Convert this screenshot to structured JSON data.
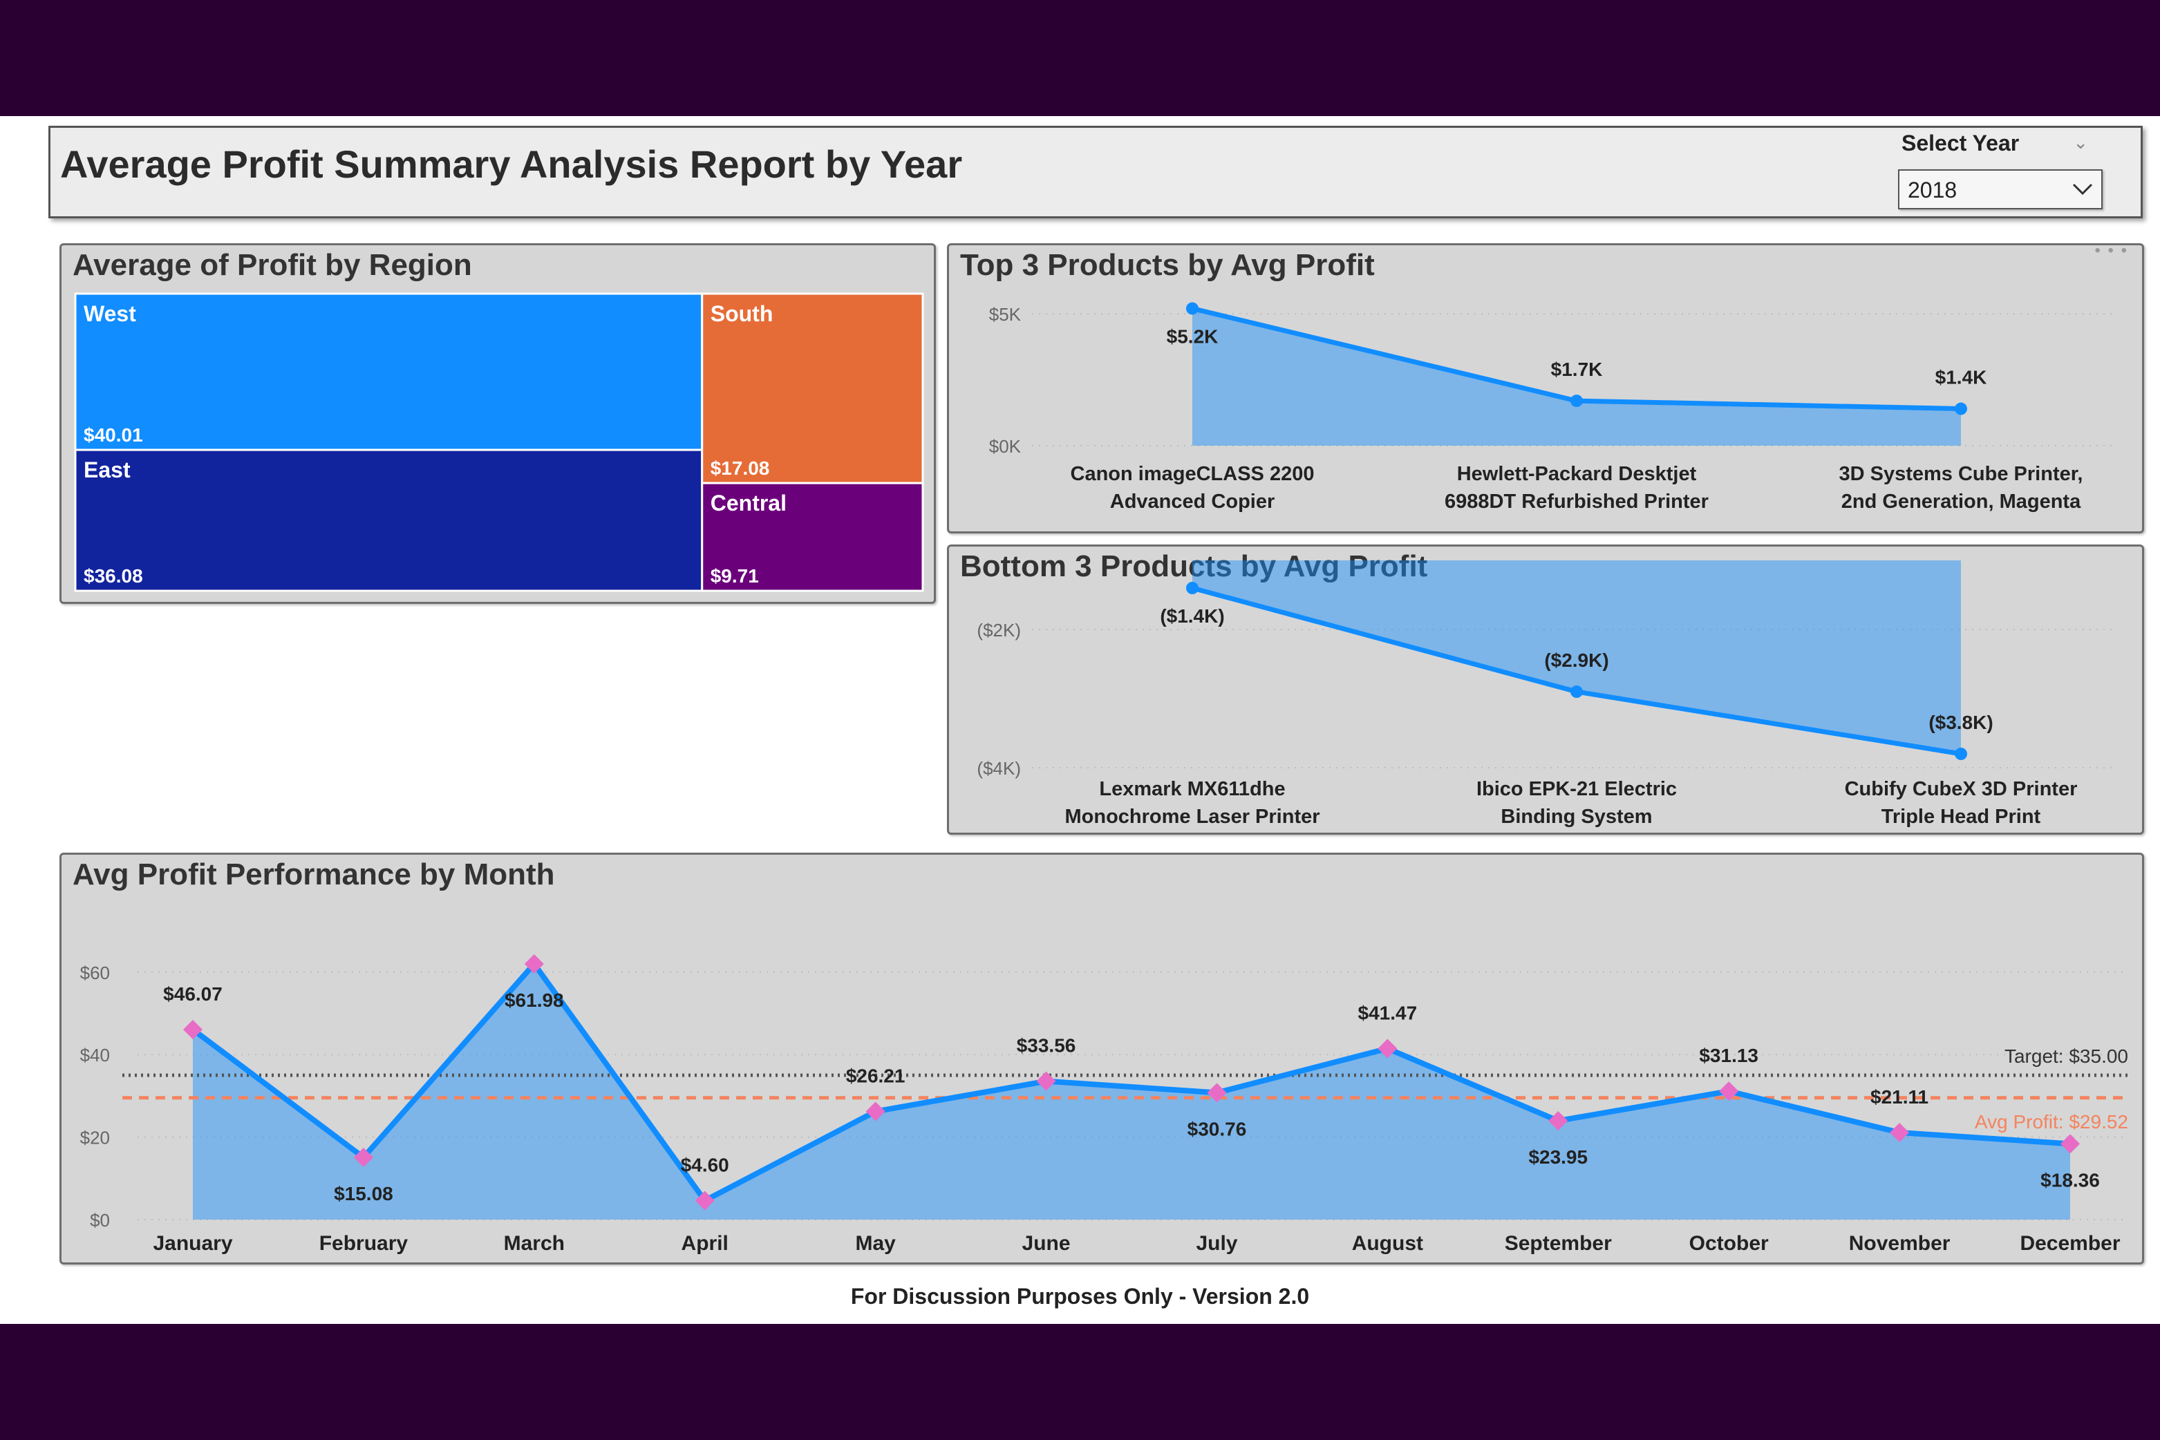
{
  "header": {
    "title": "Average Profit Summary Analysis Report by Year",
    "slicer_label": "Select Year",
    "slicer_value": "2018"
  },
  "treemap": {
    "title": "Average of Profit by Region",
    "regions": [
      {
        "name": "West",
        "value_label": "$40.01",
        "value": 40.01,
        "color": "#118dff"
      },
      {
        "name": "East",
        "value_label": "$36.08",
        "value": 36.08,
        "color": "#12239e"
      },
      {
        "name": "South",
        "value_label": "$17.08",
        "value": 17.08,
        "color": "#e66c37"
      },
      {
        "name": "Central",
        "value_label": "$9.71",
        "value": 9.71,
        "color": "#6b007b"
      }
    ]
  },
  "top3": {
    "title": "Top 3 Products by Avg Profit"
  },
  "bottom3": {
    "title": "Bottom 3 Products by Avg Profit"
  },
  "monthly": {
    "title": "Avg Profit Performance by Month"
  },
  "footer": {
    "text": "For Discussion Purposes Only - Version 2.0"
  },
  "chart_data": [
    {
      "type": "area",
      "title": "Top 3 Products by Avg Profit",
      "categories": [
        "Canon imageCLASS 2200 Advanced Copier",
        "Hewlett-Packard Desktjet 6988DT Refurbished Printer",
        "3D Systems Cube Printer, 2nd Generation, Magenta"
      ],
      "category_lines": [
        [
          "Canon imageCLASS 2200",
          "Advanced Copier"
        ],
        [
          "Hewlett-Packard Desktjet",
          "6988DT Refurbished Printer"
        ],
        [
          "3D Systems Cube Printer,",
          "2nd Generation, Magenta"
        ]
      ],
      "values": [
        5200,
        1700,
        1400
      ],
      "data_labels": [
        "$5.2K",
        "$1.7K",
        "$1.4K"
      ],
      "y_ticks": [
        {
          "value": 0,
          "label": "$0K"
        },
        {
          "value": 5000,
          "label": "$5K"
        }
      ],
      "ylim": [
        0,
        5500
      ],
      "grid": true,
      "color": "#118dff"
    },
    {
      "type": "area",
      "title": "Bottom 3 Products by Avg Profit",
      "categories": [
        "Lexmark MX611dhe Monochrome Laser Printer",
        "Ibico EPK-21 Electric Binding System",
        "Cubify CubeX 3D Printer Triple Head Print"
      ],
      "category_lines": [
        [
          "Lexmark MX611dhe",
          "Monochrome Laser Printer"
        ],
        [
          "Ibico EPK-21 Electric",
          "Binding System"
        ],
        [
          "Cubify CubeX 3D Printer",
          "Triple Head Print"
        ]
      ],
      "values": [
        -1400,
        -2900,
        -3800
      ],
      "data_labels": [
        "($1.4K)",
        "($2.9K)",
        "($3.8K)"
      ],
      "y_ticks": [
        {
          "value": -2000,
          "label": "($2K)"
        },
        {
          "value": -4000,
          "label": "($4K)"
        }
      ],
      "ylim": [
        -4000,
        -1000
      ],
      "grid": true,
      "color": "#118dff"
    },
    {
      "type": "line",
      "title": "Avg Profit Performance by Month",
      "categories": [
        "January",
        "February",
        "March",
        "April",
        "May",
        "June",
        "July",
        "August",
        "September",
        "October",
        "November",
        "December"
      ],
      "values": [
        46.07,
        15.08,
        61.98,
        4.6,
        26.21,
        33.56,
        30.76,
        41.47,
        23.95,
        31.13,
        21.11,
        18.36
      ],
      "data_labels": [
        "$46.07",
        "$15.08",
        "$61.98",
        "$4.60",
        "$26.21",
        "$33.56",
        "$30.76",
        "$41.47",
        "$23.95",
        "$31.13",
        "$21.11",
        "$18.36"
      ],
      "label_positions": [
        "above",
        "below",
        "below",
        "above",
        "above",
        "above",
        "below",
        "above",
        "below",
        "above",
        "above",
        "below"
      ],
      "y_ticks": [
        {
          "value": 0,
          "label": "$0"
        },
        {
          "value": 20,
          "label": "$20"
        },
        {
          "value": 40,
          "label": "$40"
        },
        {
          "value": 60,
          "label": "$60"
        }
      ],
      "ylim": [
        0,
        65
      ],
      "grid": true,
      "reference_lines": [
        {
          "label": "Target: $35.00",
          "value": 35.0,
          "color": "#555555",
          "style": "dotted"
        },
        {
          "label": "Avg Profit: $29.52",
          "value": 29.52,
          "color": "#f4845f",
          "style": "dashed"
        }
      ],
      "line_color": "#118dff",
      "marker_color": "#e86bc6"
    }
  ]
}
